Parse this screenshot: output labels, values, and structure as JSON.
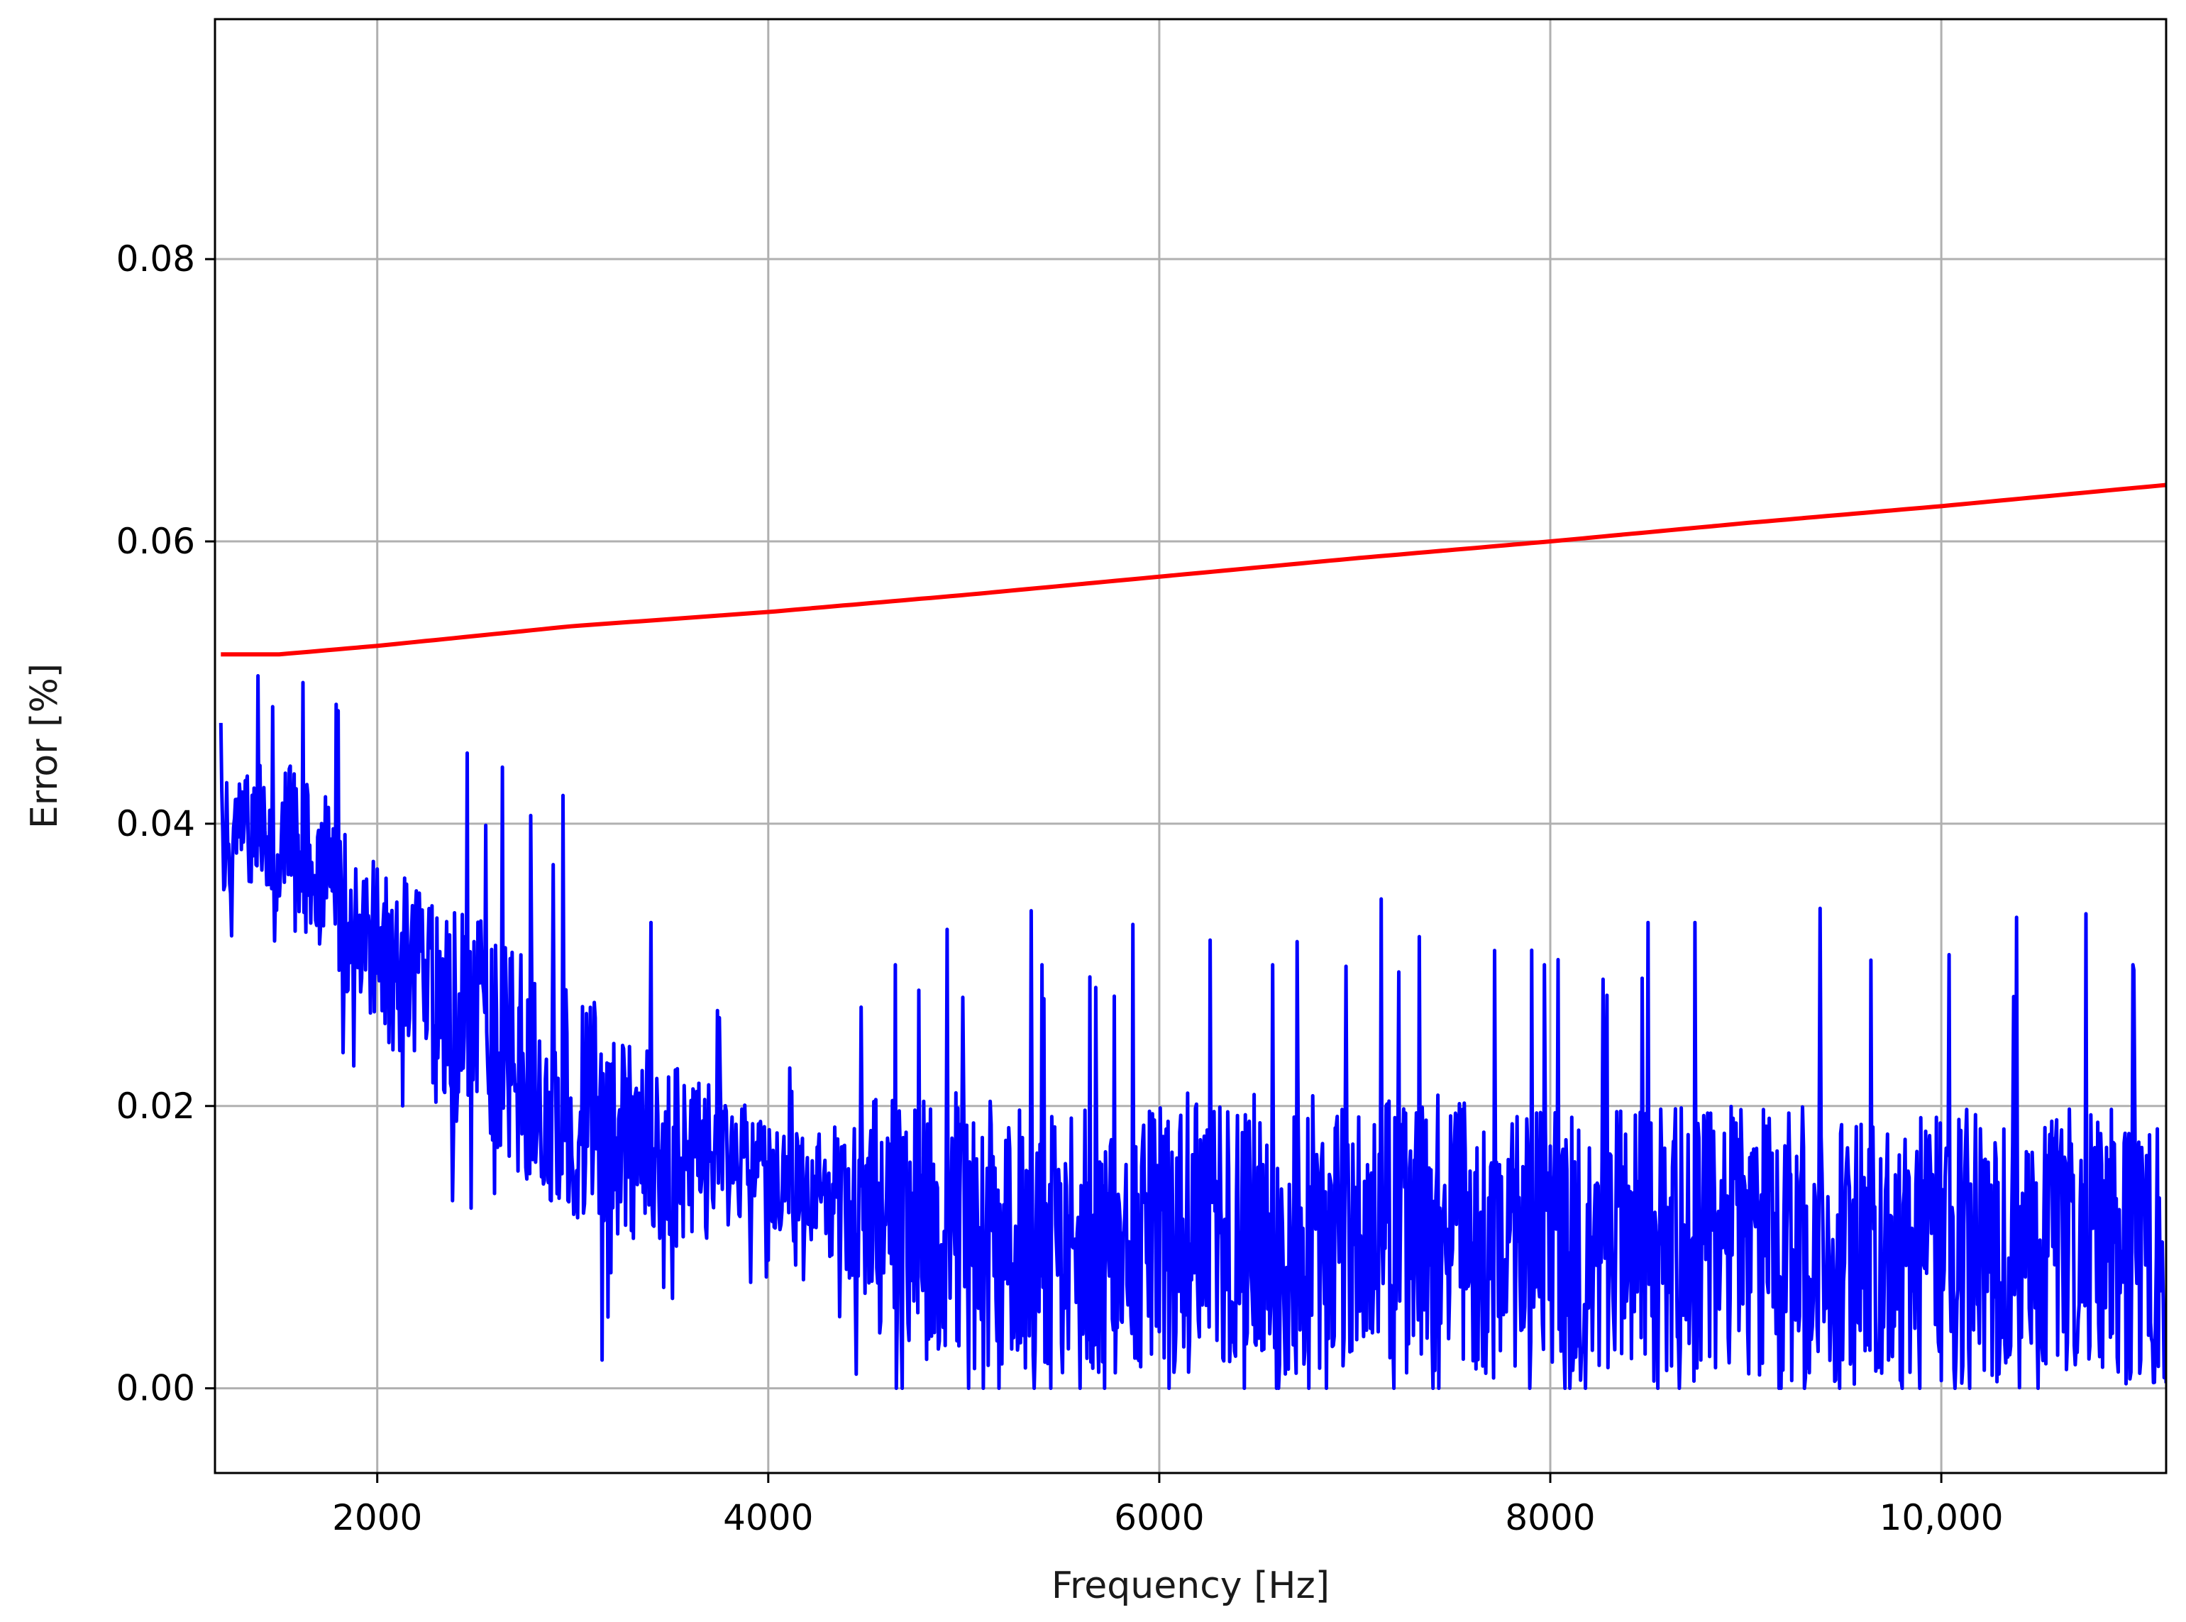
{
  "chart_data": {
    "type": "line",
    "title": "",
    "xlabel": "Frequency [Hz]",
    "ylabel": "Error [%]",
    "xlim": [
      1170,
      11150
    ],
    "ylim": [
      -0.006,
      0.097
    ],
    "grid": true,
    "x_ticks": [
      2000,
      4000,
      6000,
      8000,
      10000
    ],
    "x_tick_labels": [
      "2000",
      "4000",
      "6000",
      "8000",
      "10,000"
    ],
    "y_ticks": [
      0.0,
      0.02,
      0.04,
      0.06,
      0.08
    ],
    "y_tick_labels": [
      "0.00",
      "0.02",
      "0.04",
      "0.06",
      "0.08"
    ],
    "series": [
      {
        "color": "#ff0000",
        "style": "smooth",
        "x": [
          1200,
          1500,
          2000,
          3000,
          4000,
          5000,
          6000,
          7000,
          8000,
          9000,
          10000,
          11150
        ],
        "y": [
          0.052,
          0.052,
          0.0526,
          0.054,
          0.055,
          0.0562,
          0.0575,
          0.0588,
          0.06,
          0.0613,
          0.0625,
          0.064
        ]
      },
      {
        "color": "#0000ff",
        "style": "noisy",
        "x": [
          1200,
          1400,
          1600,
          1800,
          2000,
          2200,
          2400,
          2600,
          2800,
          3000,
          3200,
          3400,
          3600,
          3800,
          4000,
          4200,
          4400,
          4600,
          5000,
          5500,
          6000,
          6500,
          7000,
          7500,
          8000,
          8500,
          9000,
          9500,
          10000,
          10500,
          11150
        ],
        "center": [
          0.039,
          0.04,
          0.038,
          0.035,
          0.031,
          0.029,
          0.026,
          0.025,
          0.022,
          0.02,
          0.019,
          0.017,
          0.016,
          0.016,
          0.015,
          0.014,
          0.013,
          0.012,
          0.011,
          0.011,
          0.011,
          0.011,
          0.011,
          0.011,
          0.01,
          0.01,
          0.01,
          0.01,
          0.01,
          0.01,
          0.01
        ],
        "spread": [
          0.004,
          0.005,
          0.006,
          0.006,
          0.006,
          0.007,
          0.008,
          0.008,
          0.008,
          0.008,
          0.008,
          0.007,
          0.006,
          0.005,
          0.004,
          0.004,
          0.006,
          0.009,
          0.01,
          0.01,
          0.01,
          0.01,
          0.01,
          0.01,
          0.01,
          0.01,
          0.01,
          0.01,
          0.01,
          0.01,
          0.01
        ],
        "peaks": [
          {
            "x": 1620,
            "y": 0.05
          },
          {
            "x": 1800,
            "y": 0.048
          },
          {
            "x": 2460,
            "y": 0.045
          },
          {
            "x": 2640,
            "y": 0.044
          },
          {
            "x": 2950,
            "y": 0.042
          },
          {
            "x": 3400,
            "y": 0.033
          },
          {
            "x": 4650,
            "y": 0.03
          },
          {
            "x": 5400,
            "y": 0.03
          },
          {
            "x": 6580,
            "y": 0.03
          },
          {
            "x": 7330,
            "y": 0.032
          },
          {
            "x": 7970,
            "y": 0.03
          },
          {
            "x": 8500,
            "y": 0.033
          },
          {
            "x": 8740,
            "y": 0.033
          },
          {
            "x": 9380,
            "y": 0.034
          },
          {
            "x": 10980,
            "y": 0.03
          }
        ],
        "dips": [
          {
            "x": 3150,
            "y": 0.002
          },
          {
            "x": 4450,
            "y": 0.001
          },
          {
            "x": 5100,
            "y": 0.0
          },
          {
            "x": 6050,
            "y": 0.0
          },
          {
            "x": 6600,
            "y": 0.0
          },
          {
            "x": 7200,
            "y": 0.0
          },
          {
            "x": 8100,
            "y": 0.0
          },
          {
            "x": 8550,
            "y": 0.0
          },
          {
            "x": 9300,
            "y": 0.0
          },
          {
            "x": 9800,
            "y": 0.0
          }
        ]
      }
    ]
  }
}
